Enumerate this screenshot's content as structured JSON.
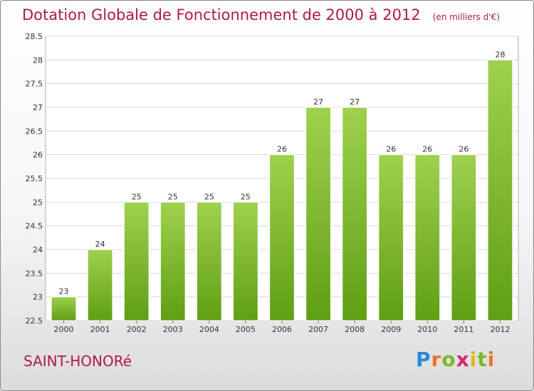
{
  "header": {
    "title": "Dotation Globale de Fonctionnement de 2000 à 2012",
    "subtitle": "(en milliers d'€)"
  },
  "footer": {
    "place_name": "SAINT-HONORé",
    "logo_text": "Proxiti"
  },
  "colors": {
    "title": "#b0184a",
    "bar_light": "#9fd14e",
    "bar_dark": "#5f9f14",
    "grid": "#d8d8d8"
  },
  "chart_data": {
    "type": "bar",
    "title": "Dotation Globale de Fonctionnement de 2000 à 2012",
    "subtitle": "(en milliers d'€)",
    "categories": [
      "2000",
      "2001",
      "2002",
      "2003",
      "2004",
      "2005",
      "2006",
      "2007",
      "2008",
      "2009",
      "2010",
      "2011",
      "2012"
    ],
    "values": [
      23,
      24,
      25,
      25,
      25,
      25,
      26,
      27,
      27,
      26,
      26,
      26,
      28
    ],
    "data_labels": [
      "23",
      "24",
      "25",
      "25",
      "25",
      "25",
      "26",
      "27",
      "27",
      "26",
      "26",
      "26",
      "28"
    ],
    "y_ticks": [
      "22.5",
      "23",
      "23.5",
      "24",
      "24.5",
      "25",
      "25.5",
      "26",
      "26.5",
      "27",
      "27.5",
      "28",
      "28.5"
    ],
    "ylim": [
      22.5,
      28.5
    ],
    "xlabel": "",
    "ylabel": "",
    "grid": true
  }
}
